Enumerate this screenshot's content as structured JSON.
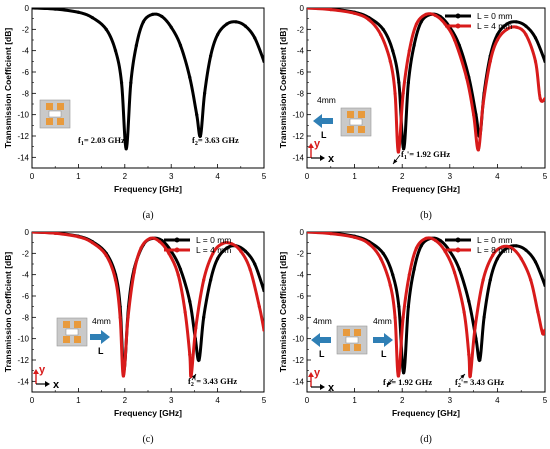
{
  "colors": {
    "black_series": "#000000",
    "red_series": "#d81b1b",
    "arrow_fill": "#2f7fb5",
    "chip_pad": "#e89a3c",
    "chip_body": "#c9c9c9"
  },
  "chart_data": [
    {
      "type": "line",
      "panel_label": "(a)",
      "xlabel": "Frequency [GHz]",
      "ylabel": "Transmission Coefficient [dB]",
      "xlim": [
        0,
        5
      ],
      "ylim": [
        -15,
        0
      ],
      "xticks": [
        "0",
        "1",
        "2",
        "3",
        "4",
        "5"
      ],
      "yticks": [
        "0",
        "-2",
        "-4",
        "-6",
        "-8",
        "-10",
        "-12",
        "-14"
      ],
      "legend": null,
      "series": [
        {
          "color": "black",
          "points": [
            [
              0,
              0
            ],
            [
              0.5,
              -0.1
            ],
            [
              1,
              -0.4
            ],
            [
              1.3,
              -0.9
            ],
            [
              1.6,
              -2
            ],
            [
              1.8,
              -4
            ],
            [
              1.93,
              -7
            ],
            [
              2.03,
              -13.2
            ],
            [
              2.13,
              -7
            ],
            [
              2.25,
              -3.5
            ],
            [
              2.4,
              -1.3
            ],
            [
              2.6,
              -0.6
            ],
            [
              2.8,
              -0.8
            ],
            [
              3.0,
              -1.8
            ],
            [
              3.2,
              -3.5
            ],
            [
              3.4,
              -6.5
            ],
            [
              3.55,
              -10
            ],
            [
              3.63,
              -12
            ],
            [
              3.72,
              -8
            ],
            [
              3.85,
              -4.5
            ],
            [
              4.0,
              -2.5
            ],
            [
              4.2,
              -1.5
            ],
            [
              4.4,
              -1.3
            ],
            [
              4.6,
              -1.7
            ],
            [
              4.8,
              -2.8
            ],
            [
              5.0,
              -5.0
            ]
          ]
        }
      ],
      "annotations": [
        "f1= 2.03 GHz",
        "f2= 3.63 GHz"
      ]
    },
    {
      "type": "line",
      "panel_label": "(b)",
      "xlabel": "Frequency [GHz]",
      "ylabel": "Transmission Coefficient [dB]",
      "xlim": [
        0,
        5
      ],
      "ylim": [
        -15,
        0
      ],
      "xticks": [
        "0",
        "1",
        "2",
        "3",
        "4",
        "5"
      ],
      "yticks": [
        "0",
        "-2",
        "-4",
        "-6",
        "-8",
        "-10",
        "-12",
        "-14"
      ],
      "legend": [
        "L = 0 mm",
        "L = 4 mm"
      ],
      "series": [
        {
          "name": "L = 0 mm",
          "color": "black",
          "points": [
            [
              0,
              0
            ],
            [
              0.5,
              -0.1
            ],
            [
              1,
              -0.4
            ],
            [
              1.3,
              -0.9
            ],
            [
              1.6,
              -2
            ],
            [
              1.8,
              -4
            ],
            [
              1.93,
              -7
            ],
            [
              2.03,
              -13.2
            ],
            [
              2.13,
              -7
            ],
            [
              2.25,
              -3.5
            ],
            [
              2.4,
              -1.3
            ],
            [
              2.6,
              -0.6
            ],
            [
              2.8,
              -0.8
            ],
            [
              3.0,
              -1.8
            ],
            [
              3.2,
              -3.5
            ],
            [
              3.4,
              -6.5
            ],
            [
              3.55,
              -10
            ],
            [
              3.63,
              -12
            ],
            [
              3.72,
              -8
            ],
            [
              3.85,
              -4.5
            ],
            [
              4.0,
              -2.5
            ],
            [
              4.2,
              -1.5
            ],
            [
              4.4,
              -1.3
            ],
            [
              4.6,
              -1.7
            ],
            [
              4.8,
              -2.8
            ],
            [
              5.0,
              -5.0
            ]
          ]
        },
        {
          "name": "L = 4 mm",
          "color": "red",
          "points": [
            [
              0,
              0
            ],
            [
              0.5,
              -0.15
            ],
            [
              1,
              -0.5
            ],
            [
              1.3,
              -1.1
            ],
            [
              1.55,
              -2.5
            ],
            [
              1.75,
              -5
            ],
            [
              1.85,
              -8
            ],
            [
              1.92,
              -13.5
            ],
            [
              2.02,
              -8
            ],
            [
              2.15,
              -4
            ],
            [
              2.3,
              -1.5
            ],
            [
              2.5,
              -0.6
            ],
            [
              2.7,
              -0.7
            ],
            [
              2.9,
              -1.5
            ],
            [
              3.1,
              -3
            ],
            [
              3.35,
              -6.5
            ],
            [
              3.5,
              -10
            ],
            [
              3.6,
              -13.3
            ],
            [
              3.7,
              -9
            ],
            [
              3.85,
              -5
            ],
            [
              4.0,
              -3
            ],
            [
              4.2,
              -2
            ],
            [
              4.4,
              -1.8
            ],
            [
              4.6,
              -2.5
            ],
            [
              4.8,
              -5
            ],
            [
              4.9,
              -8.5
            ],
            [
              5.0,
              -8.5
            ]
          ]
        }
      ],
      "annotations": [
        "f1'= 1.92 GHz",
        "4mm",
        "L",
        "x",
        "y"
      ]
    },
    {
      "type": "line",
      "panel_label": "(c)",
      "xlabel": "Frequency [GHz]",
      "ylabel": "Transmission Coefficient [dB]",
      "xlim": [
        0,
        5
      ],
      "ylim": [
        -15,
        0
      ],
      "xticks": [
        "0",
        "1",
        "2",
        "3",
        "4",
        "5"
      ],
      "yticks": [
        "0",
        "-2",
        "-4",
        "-6",
        "-8",
        "-10",
        "-12",
        "-14"
      ],
      "legend": [
        "L = 0 mm",
        "L = 4 mm"
      ],
      "series": [
        {
          "name": "L = 0 mm",
          "color": "black",
          "points": [
            [
              0,
              0
            ],
            [
              0.5,
              -0.1
            ],
            [
              1,
              -0.4
            ],
            [
              1.3,
              -0.9
            ],
            [
              1.6,
              -2
            ],
            [
              1.8,
              -4
            ],
            [
              1.9,
              -7
            ],
            [
              1.98,
              -13
            ],
            [
              2.08,
              -7
            ],
            [
              2.2,
              -3.5
            ],
            [
              2.4,
              -1.2
            ],
            [
              2.6,
              -0.6
            ],
            [
              2.8,
              -0.8
            ],
            [
              3.0,
              -1.8
            ],
            [
              3.2,
              -3.5
            ],
            [
              3.4,
              -6.5
            ],
            [
              3.52,
              -10
            ],
            [
              3.6,
              -12
            ],
            [
              3.7,
              -8
            ],
            [
              3.85,
              -4.5
            ],
            [
              4.0,
              -2.5
            ],
            [
              4.2,
              -1.5
            ],
            [
              4.4,
              -1.3
            ],
            [
              4.6,
              -1.8
            ],
            [
              4.8,
              -3
            ],
            [
              5.0,
              -5.5
            ]
          ]
        },
        {
          "name": "L = 4 mm",
          "color": "red",
          "points": [
            [
              0,
              0
            ],
            [
              0.5,
              -0.12
            ],
            [
              1,
              -0.45
            ],
            [
              1.3,
              -1
            ],
            [
              1.6,
              -2.2
            ],
            [
              1.8,
              -4.5
            ],
            [
              1.9,
              -8
            ],
            [
              1.97,
              -13.5
            ],
            [
              2.07,
              -8
            ],
            [
              2.2,
              -3.8
            ],
            [
              2.35,
              -1.5
            ],
            [
              2.55,
              -0.6
            ],
            [
              2.75,
              -0.9
            ],
            [
              2.95,
              -2
            ],
            [
              3.15,
              -4
            ],
            [
              3.3,
              -7.5
            ],
            [
              3.4,
              -11.5
            ],
            [
              3.43,
              -13.5
            ],
            [
              3.53,
              -9
            ],
            [
              3.7,
              -4.5
            ],
            [
              3.9,
              -2
            ],
            [
              4.1,
              -1.1
            ],
            [
              4.3,
              -1.1
            ],
            [
              4.5,
              -1.8
            ],
            [
              4.7,
              -3.5
            ],
            [
              4.9,
              -7
            ],
            [
              5.0,
              -9.2
            ]
          ]
        }
      ],
      "annotations": [
        "f2'= 3.43 GHz",
        "4mm",
        "L",
        "x",
        "y"
      ]
    },
    {
      "type": "line",
      "panel_label": "(d)",
      "xlabel": "Frequency [GHz]",
      "ylabel": "Transmission Coefficient [dB]",
      "xlim": [
        0,
        5
      ],
      "ylim": [
        -15,
        0
      ],
      "xticks": [
        "0",
        "1",
        "2",
        "3",
        "4",
        "5"
      ],
      "yticks": [
        "0",
        "-2",
        "-4",
        "-6",
        "-8",
        "-10",
        "-12",
        "-14"
      ],
      "legend": [
        "L = 0 mm",
        "L = 8 mm"
      ],
      "series": [
        {
          "name": "L = 0 mm",
          "color": "black",
          "points": [
            [
              0,
              0
            ],
            [
              0.5,
              -0.1
            ],
            [
              1,
              -0.4
            ],
            [
              1.3,
              -0.9
            ],
            [
              1.6,
              -2
            ],
            [
              1.8,
              -4
            ],
            [
              1.93,
              -7
            ],
            [
              2.03,
              -13.2
            ],
            [
              2.13,
              -7
            ],
            [
              2.25,
              -3.5
            ],
            [
              2.4,
              -1.3
            ],
            [
              2.6,
              -0.6
            ],
            [
              2.8,
              -0.8
            ],
            [
              3.0,
              -1.8
            ],
            [
              3.2,
              -3.5
            ],
            [
              3.4,
              -6.5
            ],
            [
              3.55,
              -10
            ],
            [
              3.63,
              -12
            ],
            [
              3.72,
              -8
            ],
            [
              3.85,
              -4.5
            ],
            [
              4.0,
              -2.5
            ],
            [
              4.2,
              -1.5
            ],
            [
              4.4,
              -1.3
            ],
            [
              4.6,
              -1.7
            ],
            [
              4.8,
              -2.8
            ],
            [
              5.0,
              -5.0
            ]
          ]
        },
        {
          "name": "L = 8 mm",
          "color": "red",
          "points": [
            [
              0,
              0
            ],
            [
              0.5,
              -0.15
            ],
            [
              1,
              -0.5
            ],
            [
              1.3,
              -1.1
            ],
            [
              1.55,
              -2.5
            ],
            [
              1.75,
              -5
            ],
            [
              1.85,
              -8
            ],
            [
              1.92,
              -13.5
            ],
            [
              2.02,
              -8
            ],
            [
              2.15,
              -4
            ],
            [
              2.3,
              -1.5
            ],
            [
              2.5,
              -0.6
            ],
            [
              2.7,
              -0.8
            ],
            [
              2.9,
              -1.8
            ],
            [
              3.1,
              -3.8
            ],
            [
              3.3,
              -7.5
            ],
            [
              3.4,
              -11.5
            ],
            [
              3.43,
              -13.5
            ],
            [
              3.53,
              -9
            ],
            [
              3.7,
              -4.5
            ],
            [
              3.9,
              -2.2
            ],
            [
              4.1,
              -1.4
            ],
            [
              4.3,
              -1.5
            ],
            [
              4.5,
              -2.5
            ],
            [
              4.7,
              -4.5
            ],
            [
              4.85,
              -7.5
            ],
            [
              4.95,
              -9.5
            ],
            [
              5.0,
              -9.2
            ]
          ]
        }
      ],
      "annotations": [
        "f1'= 1.92 GHz",
        "f2'= 3.43 GHz",
        "4mm",
        "4mm",
        "L",
        "L",
        "x",
        "y"
      ]
    }
  ]
}
